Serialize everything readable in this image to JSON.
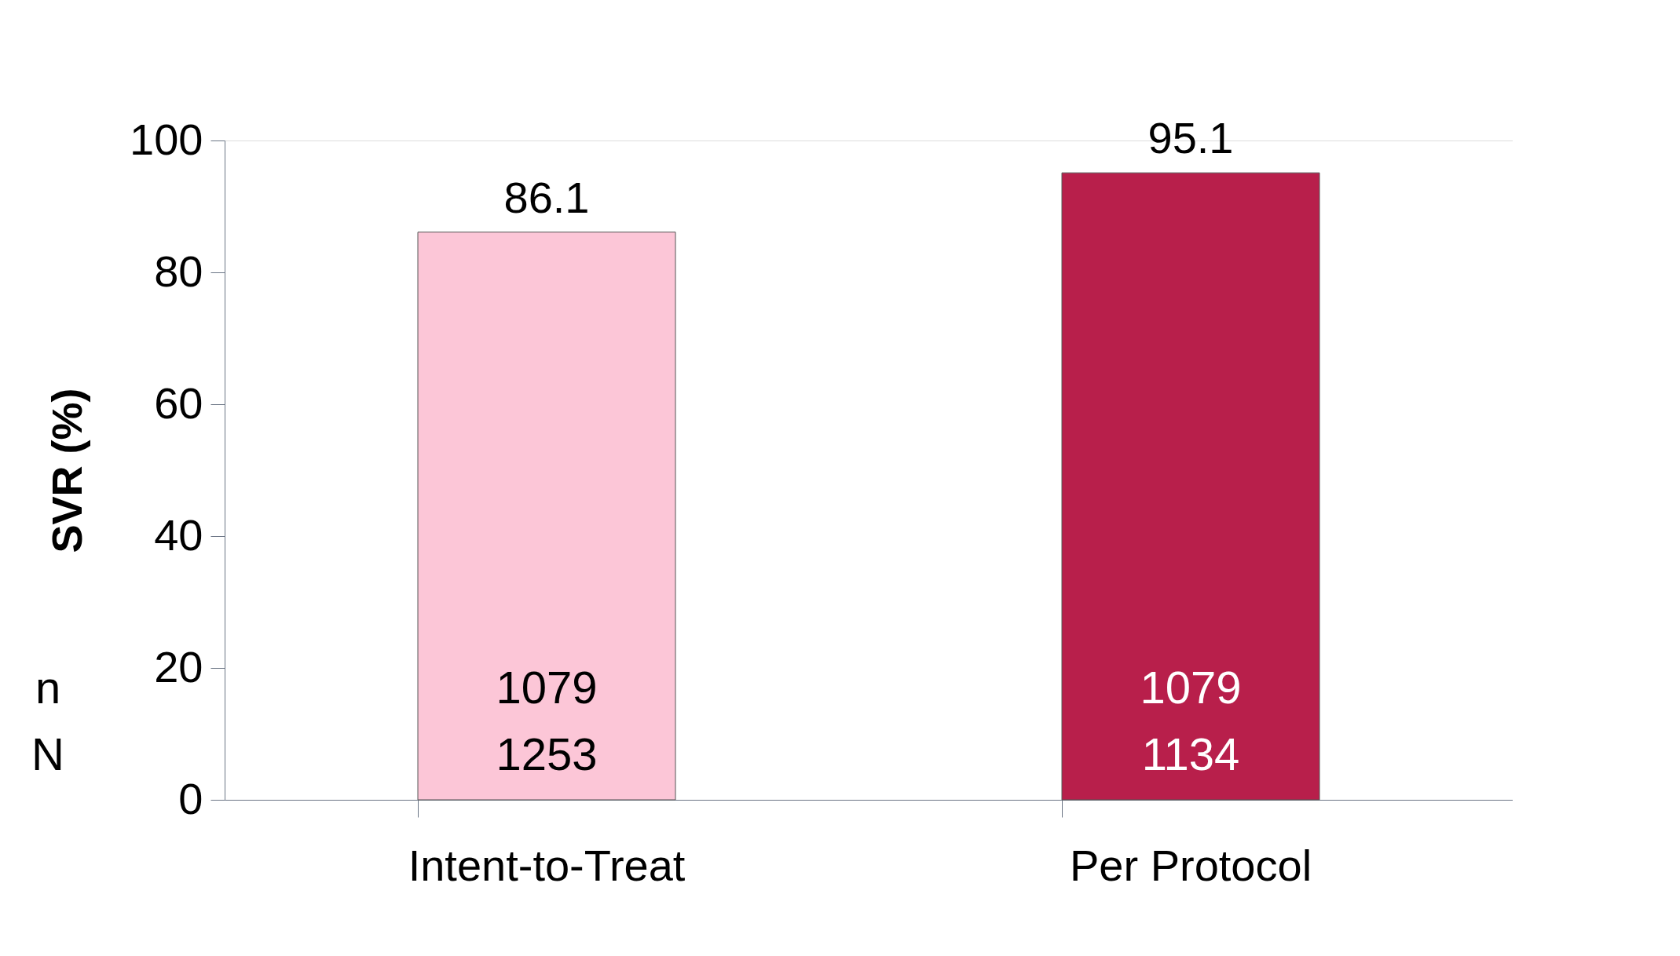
{
  "chart_data": {
    "type": "bar",
    "ylabel": "SVR (%)",
    "categories": [
      "Intent-to-Treat",
      "Per Protocol"
    ],
    "values": [
      86.1,
      95.1
    ],
    "colors": [
      "#fcc6d7",
      "#b81f4b"
    ],
    "ylim": [
      0,
      100
    ],
    "yticks": [
      0,
      20,
      40,
      60,
      80,
      100
    ],
    "grid": false,
    "data_labels": true,
    "annotations": [
      "n",
      "N",
      "1079",
      "1253",
      "1079",
      "1134"
    ]
  }
}
